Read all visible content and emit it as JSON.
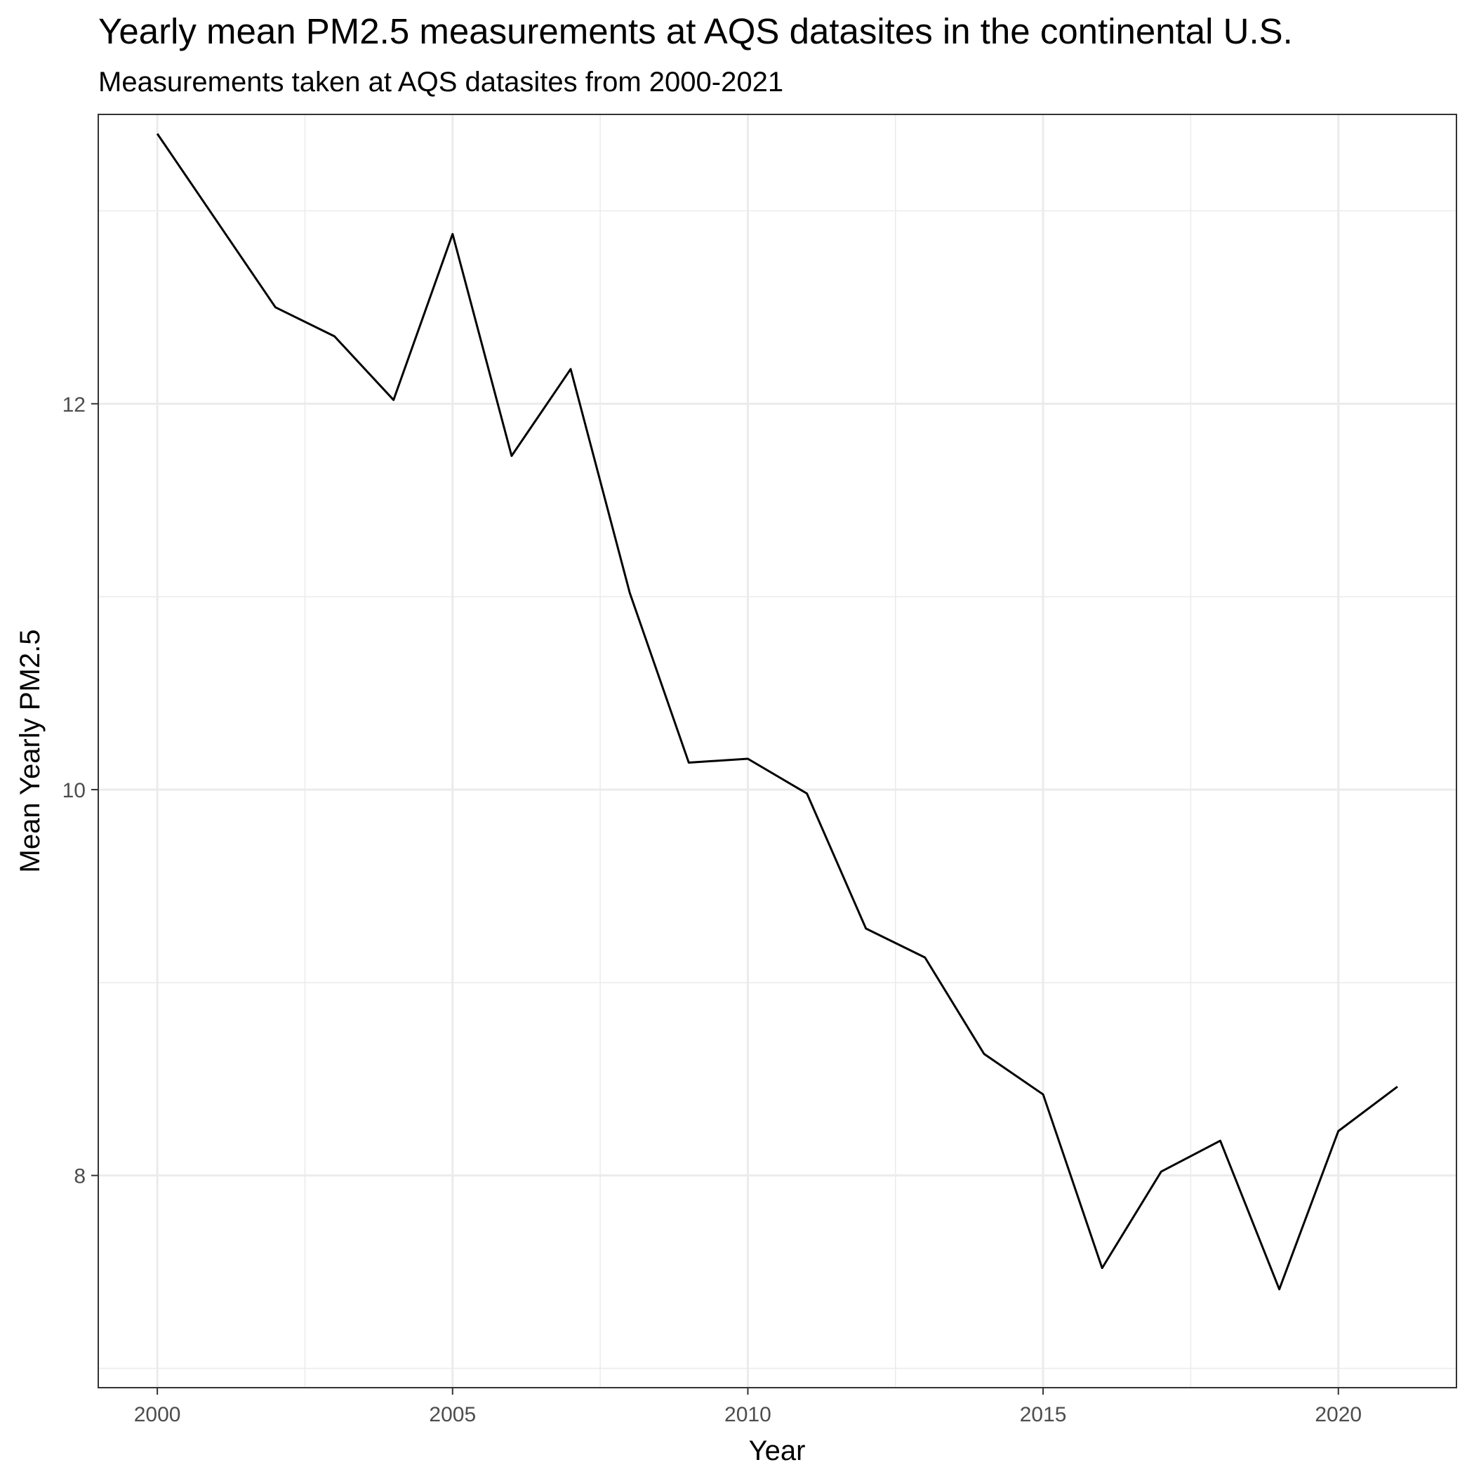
{
  "chart_data": {
    "type": "line",
    "title": "Yearly mean PM2.5 measurements at AQS datasites in the continental U.S.",
    "subtitle": "Measurements taken at AQS datasites from 2000-2021",
    "xlabel": "Year",
    "ylabel": "Mean Yearly PM2.5",
    "x_ticks": [
      "2000",
      "2005",
      "2010",
      "2015",
      "2020"
    ],
    "y_ticks": [
      "8",
      "10",
      "12"
    ],
    "xlim": [
      1999,
      2022
    ],
    "ylim": [
      6.9,
      13.5
    ],
    "grid": true,
    "legend": "none",
    "line_color": "#000000",
    "grid_color": "#ebebeb",
    "series": [
      {
        "x": [
          2000,
          2001,
          2002,
          2003,
          2004,
          2005,
          2006,
          2007,
          2008,
          2009,
          2010,
          2011,
          2012,
          2013,
          2014,
          2015,
          2016,
          2017,
          2018,
          2019,
          2020,
          2021
        ],
        "values": [
          13.4,
          12.95,
          12.5,
          12.35,
          12.02,
          12.88,
          11.73,
          12.18,
          11.02,
          10.14,
          10.16,
          9.98,
          9.28,
          9.13,
          8.63,
          8.42,
          7.52,
          8.02,
          8.18,
          7.41,
          8.23,
          8.46
        ]
      }
    ]
  }
}
